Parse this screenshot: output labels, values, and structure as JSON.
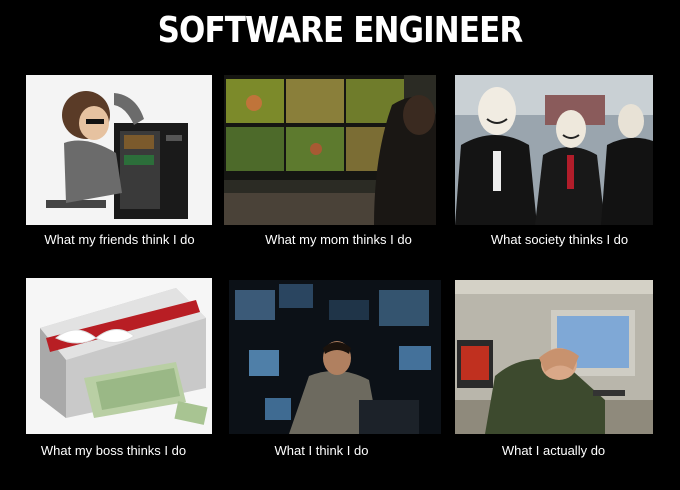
{
  "title": "SOFTWARE ENGINEER",
  "panels": [
    {
      "caption": "What my friends think I do"
    },
    {
      "caption": "What my mom thinks I do"
    },
    {
      "caption": "What society thinks I do"
    },
    {
      "caption": "What my boss thinks I do"
    },
    {
      "caption": "What I think I do"
    },
    {
      "caption": "What I actually do"
    }
  ],
  "colors": {
    "background": "#000000",
    "text": "#ffffff"
  }
}
